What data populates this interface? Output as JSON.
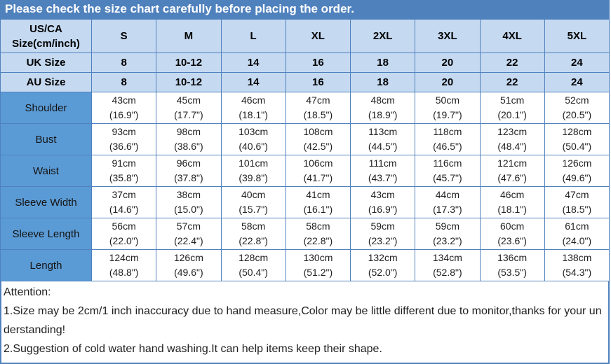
{
  "title": "Please check the size chart carefully before placing the order.",
  "colors": {
    "title_bar_bg": "#4f81bd",
    "header_cell_bg": "#c5d9f1",
    "row_label_bg": "#5b9bd5",
    "border": "#4f81bd",
    "title_text": "#ffffff"
  },
  "table": {
    "corner": {
      "line1": "US/CA",
      "line2": "Size(cm/inch)"
    },
    "sizes": [
      "S",
      "M",
      "L",
      "XL",
      "2XL",
      "3XL",
      "4XL",
      "5XL"
    ],
    "uk": {
      "label": "UK Size",
      "values": [
        "8",
        "10-12",
        "14",
        "16",
        "18",
        "20",
        "22",
        "24"
      ]
    },
    "au": {
      "label": "AU Size",
      "values": [
        "8",
        "10-12",
        "14",
        "16",
        "18",
        "20",
        "22",
        "24"
      ]
    },
    "measurements": [
      {
        "label": "Shoulder",
        "values": [
          {
            "cm": "43cm",
            "inch": "(16.9\")"
          },
          {
            "cm": "45cm",
            "inch": "(17.7\")"
          },
          {
            "cm": "46cm",
            "inch": "(18.1\")"
          },
          {
            "cm": "47cm",
            "inch": "(18.5\")"
          },
          {
            "cm": "48cm",
            "inch": "(18.9\")"
          },
          {
            "cm": "50cm",
            "inch": "(19.7\")"
          },
          {
            "cm": "51cm",
            "inch": "(20.1\")"
          },
          {
            "cm": "52cm",
            "inch": "(20.5\")"
          }
        ]
      },
      {
        "label": "Bust",
        "values": [
          {
            "cm": "93cm",
            "inch": "(36.6\")"
          },
          {
            "cm": "98cm",
            "inch": "(38.6\")"
          },
          {
            "cm": "103cm",
            "inch": "(40.6\")"
          },
          {
            "cm": "108cm",
            "inch": "(42.5\")"
          },
          {
            "cm": "113cm",
            "inch": "(44.5\")"
          },
          {
            "cm": "118cm",
            "inch": "(46.5\")"
          },
          {
            "cm": "123cm",
            "inch": "(48.4\")"
          },
          {
            "cm": "128cm",
            "inch": "(50.4\")"
          }
        ]
      },
      {
        "label": "Waist",
        "values": [
          {
            "cm": "91cm",
            "inch": "(35.8\")"
          },
          {
            "cm": "96cm",
            "inch": "(37.8\")"
          },
          {
            "cm": "101cm",
            "inch": "(39.8\")"
          },
          {
            "cm": "106cm",
            "inch": "(41.7\")"
          },
          {
            "cm": "111cm",
            "inch": "(43.7\")"
          },
          {
            "cm": "116cm",
            "inch": "(45.7\")"
          },
          {
            "cm": "121cm",
            "inch": "(47.6\")"
          },
          {
            "cm": "126cm",
            "inch": "(49.6\")"
          }
        ]
      },
      {
        "label": "Sleeve Width",
        "values": [
          {
            "cm": "37cm",
            "inch": "(14.6\")"
          },
          {
            "cm": "38cm",
            "inch": "(15.0\")"
          },
          {
            "cm": "40cm",
            "inch": "(15.7\")"
          },
          {
            "cm": "41cm",
            "inch": "(16.1\")"
          },
          {
            "cm": "43cm",
            "inch": "(16.9\")"
          },
          {
            "cm": "44cm",
            "inch": "(17.3\")"
          },
          {
            "cm": "46cm",
            "inch": "(18.1\")"
          },
          {
            "cm": "47cm",
            "inch": "(18.5\")"
          }
        ]
      },
      {
        "label": "Sleeve Length",
        "values": [
          {
            "cm": "56cm",
            "inch": "(22.0\")"
          },
          {
            "cm": "57cm",
            "inch": "(22.4\")"
          },
          {
            "cm": "58cm",
            "inch": "(22.8\")"
          },
          {
            "cm": "58cm",
            "inch": "(22.8\")"
          },
          {
            "cm": "59cm",
            "inch": "(23.2\")"
          },
          {
            "cm": "59cm",
            "inch": "(23.2\")"
          },
          {
            "cm": "60cm",
            "inch": "(23.6\")"
          },
          {
            "cm": "61cm",
            "inch": "(24.0\")"
          }
        ]
      },
      {
        "label": "Length",
        "values": [
          {
            "cm": "124cm",
            "inch": "(48.8\")"
          },
          {
            "cm": "126cm",
            "inch": "(49.6\")"
          },
          {
            "cm": "128cm",
            "inch": "(50.4\")"
          },
          {
            "cm": "130cm",
            "inch": "(51.2\")"
          },
          {
            "cm": "132cm",
            "inch": "(52.0\")"
          },
          {
            "cm": "134cm",
            "inch": "(52.8\")"
          },
          {
            "cm": "136cm",
            "inch": "(53.5\")"
          },
          {
            "cm": "138cm",
            "inch": "(54.3\")"
          }
        ]
      }
    ]
  },
  "attention": {
    "heading": "Attention:",
    "note1": "1.Size may be 2cm/1 inch inaccuracy due to hand measure,Color may be little different due to monitor,thanks for your understanding!",
    "note2": "2.Suggestion of cold water hand washing.It can help items keep their shape."
  }
}
